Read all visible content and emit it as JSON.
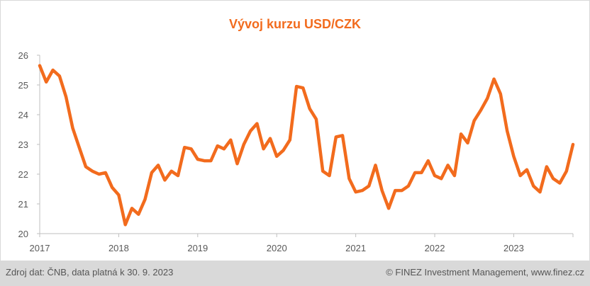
{
  "colors": {
    "accent": "#f26b1d",
    "axis": "#bfbfbf",
    "text": "#595959",
    "footer_bg": "#d9d9d9"
  },
  "chart_data": {
    "type": "line",
    "title": "Vývoj kurzu USD/CZK",
    "xlabel": "",
    "ylabel": "",
    "xlim": [
      2017.0,
      2023.75
    ],
    "ylim": [
      20,
      26
    ],
    "yticks": [
      20,
      21,
      22,
      23,
      24,
      25,
      26
    ],
    "xticks": [
      "2017",
      "2018",
      "2019",
      "2020",
      "2021",
      "2022",
      "2023"
    ],
    "grid": false,
    "series": [
      {
        "color": "#f26b1d",
        "x": [
          2017.0,
          2017.083,
          2017.167,
          2017.25,
          2017.333,
          2017.417,
          2017.5,
          2017.583,
          2017.667,
          2017.75,
          2017.833,
          2017.917,
          2018.0,
          2018.083,
          2018.167,
          2018.25,
          2018.333,
          2018.417,
          2018.5,
          2018.583,
          2018.667,
          2018.75,
          2018.833,
          2018.917,
          2019.0,
          2019.083,
          2019.167,
          2019.25,
          2019.333,
          2019.417,
          2019.5,
          2019.583,
          2019.667,
          2019.75,
          2019.833,
          2019.917,
          2020.0,
          2020.083,
          2020.167,
          2020.25,
          2020.333,
          2020.417,
          2020.5,
          2020.583,
          2020.667,
          2020.75,
          2020.833,
          2020.917,
          2021.0,
          2021.083,
          2021.167,
          2021.25,
          2021.333,
          2021.417,
          2021.5,
          2021.583,
          2021.667,
          2021.75,
          2021.833,
          2021.917,
          2022.0,
          2022.083,
          2022.167,
          2022.25,
          2022.333,
          2022.417,
          2022.5,
          2022.583,
          2022.667,
          2022.75,
          2022.833,
          2022.917,
          2023.0,
          2023.083,
          2023.167,
          2023.25,
          2023.333,
          2023.417,
          2023.5,
          2023.583,
          2023.667,
          2023.75
        ],
        "y": [
          25.65,
          25.1,
          25.5,
          25.3,
          24.6,
          23.55,
          22.9,
          22.25,
          22.1,
          22.0,
          22.05,
          21.55,
          21.3,
          20.3,
          20.85,
          20.65,
          21.15,
          22.05,
          22.3,
          21.8,
          22.1,
          21.95,
          22.9,
          22.85,
          22.5,
          22.45,
          22.45,
          22.95,
          22.85,
          23.15,
          22.35,
          23.0,
          23.45,
          23.7,
          22.85,
          23.2,
          22.6,
          22.8,
          23.15,
          24.95,
          24.9,
          24.2,
          23.85,
          22.1,
          21.95,
          23.25,
          23.3,
          21.85,
          21.4,
          21.45,
          21.6,
          22.3,
          21.45,
          20.85,
          21.45,
          21.45,
          21.6,
          22.05,
          22.05,
          22.45,
          21.95,
          21.85,
          22.3,
          21.95,
          23.35,
          23.05,
          23.8,
          24.15,
          24.55,
          25.2,
          24.7,
          23.45,
          22.6,
          21.95,
          22.15,
          21.6,
          21.4,
          22.25,
          21.85,
          21.7,
          22.1,
          23.0
        ]
      }
    ]
  },
  "footer": {
    "source": "Zdroj dat: ČNB, data platná k 30. 9. 2023",
    "copyright": "© FINEZ Investment Management, www.finez.cz"
  }
}
